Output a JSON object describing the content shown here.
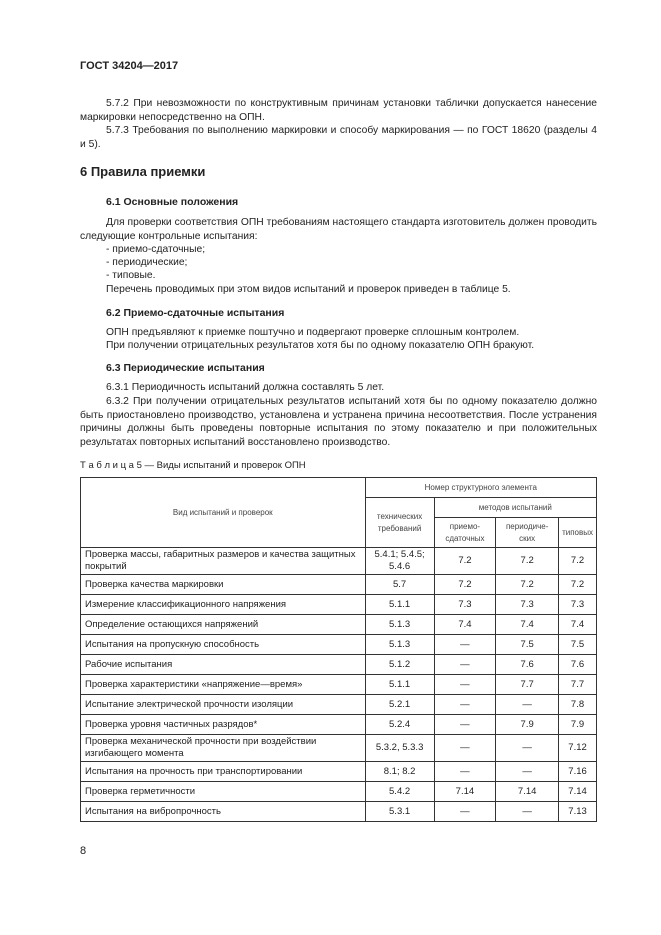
{
  "header": "ГОСТ 34204—2017",
  "p572": "5.7.2 При невозможности по конструктивным причинам установки таблички допускается нанесение маркировки непосредственно на ОПН.",
  "p573": "5.7.3 Требования по выполнению маркировки и способу маркирования — по ГОСТ 18620 (разделы 4 и 5).",
  "s6": "6 Правила приемки",
  "s61": "6.1 Основные положения",
  "p61": "Для проверки соответствия ОПН требованиям настоящего стандарта изготовитель должен проводить следующие контрольные испытания:",
  "list": [
    "- приемо-сдаточные;",
    "- периодические;",
    "- типовые."
  ],
  "p61b": "Перечень проводимых при этом видов испытаний и проверок приведен в таблице 5.",
  "s62": "6.2 Приемо-сдаточные испытания",
  "p62a": "ОПН предъявляют к приемке поштучно и подвергают проверке сплошным контролем.",
  "p62b": "При получении отрицательных результатов хотя бы по одному показателю ОПН бракуют.",
  "s63": "6.3 Периодические испытания",
  "p631": "6.3.1 Периодичность испытаний должна составлять 5 лет.",
  "p632": "6.3.2 При получении отрицательных результатов испытаний хотя бы по одному показателю должно быть приостановлено производство, установлена и устранена причина несоответствия. После устранения причины должны быть проведены повторные испытания по этому показателю и при положительных результатах повторных испытаний восстановлено производство.",
  "table": {
    "caption": "Т а б л и ц а  5 — Виды испытаний и проверок ОПН",
    "h_type": "Вид испытаний и проверок",
    "h_num": "Номер структурного элемента",
    "h_tech": "технических требований",
    "h_methods": "методов испытаний",
    "h_acc": "приемо-сдаточных",
    "h_per": "периодиче-ских",
    "h_typ": "типовых",
    "rows": [
      [
        "Проверка массы, габаритных размеров и качества защитных покрытий",
        "5.4.1; 5.4.5; 5.4.6",
        "7.2",
        "7.2",
        "7.2"
      ],
      [
        "Проверка качества маркировки",
        "5.7",
        "7.2",
        "7.2",
        "7.2"
      ],
      [
        "Измерение классификационного напряжения",
        "5.1.1",
        "7.3",
        "7.3",
        "7.3"
      ],
      [
        "Определение остающихся напряжений",
        "5.1.3",
        "7.4",
        "7.4",
        "7.4"
      ],
      [
        "Испытания на пропускную способность",
        "5.1.3",
        "—",
        "7.5",
        "7.5"
      ],
      [
        "Рабочие испытания",
        "5.1.2",
        "—",
        "7.6",
        "7.6"
      ],
      [
        "Проверка характеристики «напряжение—время»",
        "5.1.1",
        "—",
        "7.7",
        "7.7"
      ],
      [
        "Испытание электрической прочности изоляции",
        "5.2.1",
        "—",
        "—",
        "7.8"
      ],
      [
        "Проверка уровня частичных разрядов*",
        "5.2.4",
        "—",
        "7.9",
        "7.9"
      ],
      [
        "Проверка механической прочности при воздействии изгибающего момента",
        "5.3.2, 5.3.3",
        "—",
        "—",
        "7.12"
      ],
      [
        "Испытания на прочность при транспортировании",
        "8.1; 8.2",
        "—",
        "—",
        "7.16"
      ],
      [
        "Проверка герметичности",
        "5.4.2",
        "7.14",
        "7.14",
        "7.14"
      ],
      [
        "Испытания на вибропрочность",
        "5.3.1",
        "—",
        "—",
        "7.13"
      ]
    ]
  },
  "page_number": "8"
}
